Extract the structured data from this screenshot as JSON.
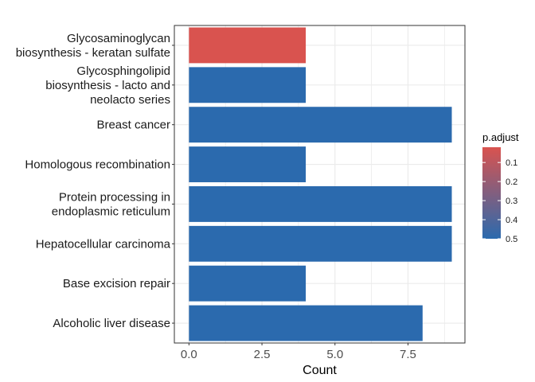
{
  "chart_data": {
    "type": "bar",
    "orientation": "horizontal",
    "categories": [
      [
        "Glycosaminoglycan",
        "biosynthesis - keratan sulfate"
      ],
      [
        "Glycosphingolipid",
        "biosynthesis - lacto and",
        "neolacto series"
      ],
      [
        "Breast cancer"
      ],
      [
        "Homologous recombination"
      ],
      [
        "Protein processing in",
        "endoplasmic reticulum"
      ],
      [
        "Hepatocellular carcinoma"
      ],
      [
        "Base excision repair"
      ],
      [
        "Alcoholic liver disease"
      ]
    ],
    "values": [
      4,
      4,
      9,
      4,
      9,
      9,
      4,
      8
    ],
    "p_adjust": [
      0.02,
      0.5,
      0.5,
      0.5,
      0.5,
      0.5,
      0.5,
      0.5
    ],
    "xlabel": "Count",
    "xlim": [
      -0.5,
      9.45
    ],
    "xticks": [
      0,
      2.5,
      5,
      7.5
    ],
    "xtick_labels": [
      "0.0",
      "2.5",
      "5.0",
      "7.5"
    ],
    "grid": true,
    "legend": {
      "title": "p.adjust",
      "position": "right",
      "ticks": [
        0.1,
        0.2,
        0.3,
        0.4,
        0.5
      ],
      "tick_labels": [
        "0.1",
        "0.2",
        "0.3",
        "0.4",
        "0.5"
      ],
      "range": [
        0.02,
        0.5
      ],
      "low_color": "#d9534f",
      "high_color": "#2b6aae"
    },
    "colors": {
      "panel_border": "#333333",
      "grid": "#ebebeb"
    }
  }
}
